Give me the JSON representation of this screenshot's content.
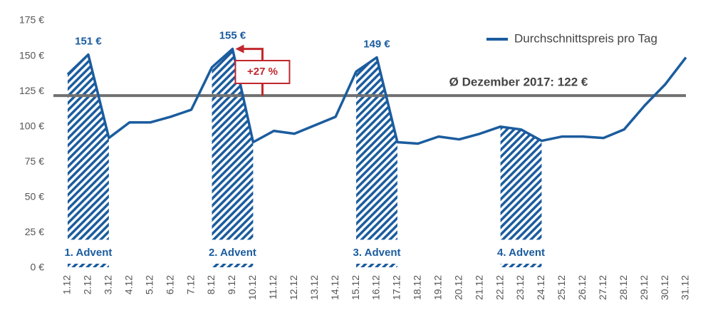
{
  "chart_data": {
    "type": "line",
    "categories": [
      "1.12",
      "2.12",
      "3.12",
      "4.12",
      "5.12",
      "6.12",
      "7.12",
      "8.12",
      "9.12",
      "10.12",
      "11.12",
      "12.12",
      "13.12",
      "14.12",
      "15.12",
      "16.12",
      "17.12",
      "18.12",
      "19.12",
      "20.12",
      "21.12",
      "22.12",
      "23.12",
      "24.12",
      "25.12",
      "26.12",
      "27.12",
      "28.12",
      "29.12",
      "30.12",
      "31.12"
    ],
    "series": [
      {
        "name": "Durchschnittspreis pro Tag",
        "color": "#1b5c9e",
        "values": [
          137,
          151,
          92,
          103,
          103,
          107,
          112,
          142,
          155,
          89,
          97,
          95,
          101,
          107,
          139,
          149,
          89,
          88,
          93,
          91,
          95,
          100,
          98,
          90,
          93,
          93,
          92,
          98,
          115,
          130,
          149
        ],
        "value_labels": [
          null,
          "151 €",
          null,
          null,
          null,
          null,
          null,
          null,
          "155 €",
          null,
          null,
          null,
          null,
          null,
          null,
          "149 €",
          null,
          null,
          null,
          null,
          null,
          null,
          null,
          null,
          null,
          null,
          null,
          null,
          null,
          null,
          null
        ]
      }
    ],
    "ylim": [
      0,
      175
    ],
    "yticks": [
      {
        "value": 0,
        "label": "0 €"
      },
      {
        "value": 25,
        "label": "25 €"
      },
      {
        "value": 50,
        "label": "50 €"
      },
      {
        "value": 75,
        "label": "75 €"
      },
      {
        "value": 100,
        "label": "100 €"
      },
      {
        "value": 125,
        "label": "125 €"
      },
      {
        "value": 150,
        "label": "150 €"
      },
      {
        "value": 175,
        "label": "175 €"
      }
    ],
    "legend": "top-right",
    "average": {
      "value": 122,
      "label": "Ø Dezember 2017: 122 €",
      "color": "#707070"
    },
    "change": {
      "value": 27,
      "label": "+27 %",
      "color": "#c0272d"
    },
    "advents": [
      {
        "label": "1. Advent",
        "range": [
          "1.12",
          "3.12"
        ]
      },
      {
        "label": "2. Advent",
        "range": [
          "8.12",
          "10.12"
        ]
      },
      {
        "label": "3. Advent",
        "range": [
          "15.12",
          "17.12"
        ]
      },
      {
        "label": "4. Advent",
        "range": [
          "22.12",
          "24.12"
        ]
      }
    ]
  }
}
